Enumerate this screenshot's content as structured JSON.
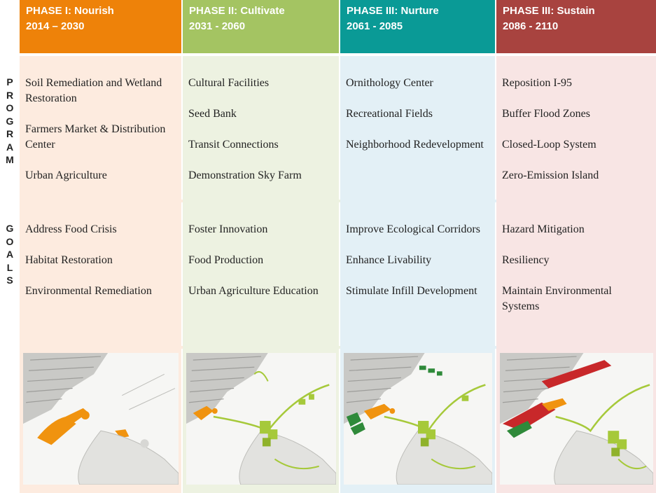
{
  "phases": [
    {
      "title": "PHASE I: Nourish",
      "years": "2014 – 2030",
      "color": "#ee8209",
      "bg": "#fdebdf"
    },
    {
      "title": "PHASE II: Cultivate",
      "years": "2031 - 2060",
      "color": "#a4c462",
      "bg": "#edf2e1"
    },
    {
      "title": "PHASE III: Nurture",
      "years": "2061 - 2085",
      "color": "#0a9a96",
      "bg": "#e3f0f6"
    },
    {
      "title": "PHASE III: Sustain",
      "years": "2086 - 2110",
      "color": "#a8433f",
      "bg": "#f8e5e4"
    }
  ],
  "row_labels": {
    "program": [
      "P",
      "R",
      "O",
      "G",
      "R",
      "A",
      "M"
    ],
    "goals": [
      "G",
      "O",
      "A",
      "L",
      "S"
    ]
  },
  "program": [
    [
      "Soil Remediation and Wetland Restoration",
      "Farmers Market & Distribution Center",
      "Urban Agriculture"
    ],
    [
      "Cultural Facilities",
      "Seed Bank",
      "Transit Connections",
      "Demonstration Sky Farm"
    ],
    [
      "Ornithology Center",
      "Recreational Fields",
      "Neighborhood Redevelopment"
    ],
    [
      "Reposition I-95",
      "Buffer Flood Zones",
      "Closed-Loop System",
      "Zero-Emission Island"
    ]
  ],
  "goals": [
    [
      "Address Food Crisis",
      "Habitat Restoration",
      "Environmental Remediation"
    ],
    [
      "Foster Innovation",
      "Food Production",
      "Urban Agriculture Education"
    ],
    [
      "Improve Ecological Corridors",
      "Enhance Livability",
      "Stimulate Infill Development"
    ],
    [
      "Hazard Mitigation",
      "Resiliency",
      "Maintain Environmental Systems"
    ]
  ],
  "map_colors": {
    "orange": "#f0930f",
    "green": "#a6c93a",
    "darkgreen": "#2f8a3a",
    "red": "#c8282a"
  }
}
